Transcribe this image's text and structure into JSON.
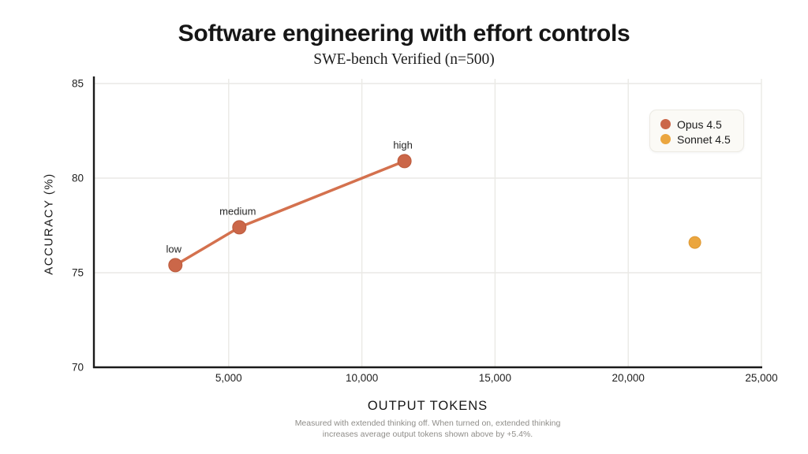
{
  "header": {
    "title": "Software engineering with effort controls",
    "subtitle": "SWE-bench Verified (n=500)"
  },
  "chart_data": {
    "type": "scatter",
    "title": "Software engineering with effort controls",
    "subtitle": "SWE-bench Verified (n=500)",
    "xlabel": "OUTPUT TOKENS",
    "ylabel": "ACCURACY (%)",
    "xlim": [
      0,
      25000
    ],
    "ylim": [
      70,
      85
    ],
    "grid": true,
    "legend_position": "top-right",
    "x_ticks": [
      5000,
      10000,
      15000,
      20000,
      25000
    ],
    "x_tick_labels": [
      "5,000",
      "10,000",
      "15,000",
      "20,000",
      "25,000"
    ],
    "y_ticks": [
      70,
      75,
      80,
      85
    ],
    "y_tick_labels": [
      "70",
      "75",
      "80",
      "85"
    ],
    "series": [
      {
        "name": "Opus 4.5",
        "color": "#D4714E",
        "marker_color": "#CB6749",
        "marker_stroke": "#BC5A3C",
        "marker_size": 8.5,
        "line": true,
        "points": [
          {
            "label": "low",
            "x": 3000,
            "y": 75.4
          },
          {
            "label": "medium",
            "x": 5400,
            "y": 77.4
          },
          {
            "label": "high",
            "x": 11600,
            "y": 80.9
          }
        ]
      },
      {
        "name": "Sonnet 4.5",
        "color": "#EBA63F",
        "marker_color": "#EBA63F",
        "marker_stroke": "#DE9832",
        "marker_size": 7.5,
        "line": false,
        "points": [
          {
            "label": "",
            "x": 22500,
            "y": 76.6
          }
        ]
      }
    ]
  },
  "footnote": {
    "line1": "Measured with extended thinking off. When turned on, extended thinking",
    "line2": "increases average output tokens shown above by +5.4%."
  },
  "style_colors": {
    "axis": "#1a1a1a",
    "gridline": "#EAE9E5",
    "legend_background": "#FBFAF6",
    "footnote_text": "#8f8d89"
  }
}
